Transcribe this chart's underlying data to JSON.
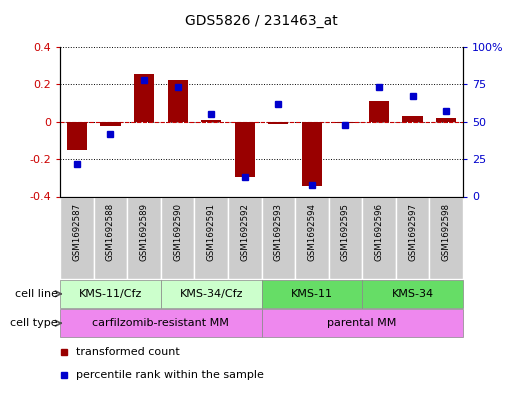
{
  "title": "GDS5826 / 231463_at",
  "samples": [
    "GSM1692587",
    "GSM1692588",
    "GSM1692589",
    "GSM1692590",
    "GSM1692591",
    "GSM1692592",
    "GSM1692593",
    "GSM1692594",
    "GSM1692595",
    "GSM1692596",
    "GSM1692597",
    "GSM1692598"
  ],
  "transformed_count": [
    -0.15,
    -0.02,
    0.255,
    0.225,
    0.01,
    -0.295,
    -0.01,
    -0.345,
    -0.005,
    0.11,
    0.03,
    0.02
  ],
  "percentile_rank": [
    22,
    42,
    78,
    73,
    55,
    13,
    62,
    8,
    48,
    73,
    67,
    57
  ],
  "bar_color": "#990000",
  "dot_color": "#0000cc",
  "ylim_left": [
    -0.4,
    0.4
  ],
  "ylim_right": [
    0,
    100
  ],
  "yticks_left": [
    -0.4,
    -0.2,
    0,
    0.2,
    0.4
  ],
  "yticks_right": [
    0,
    25,
    50,
    75,
    100
  ],
  "cell_line_groups": [
    {
      "label": "KMS-11/Cfz",
      "start": 0,
      "end": 2,
      "color": "#ccffcc"
    },
    {
      "label": "KMS-34/Cfz",
      "start": 3,
      "end": 5,
      "color": "#ccffcc"
    },
    {
      "label": "KMS-11",
      "start": 6,
      "end": 8,
      "color": "#66dd66"
    },
    {
      "label": "KMS-34",
      "start": 9,
      "end": 11,
      "color": "#66dd66"
    }
  ],
  "cell_type_groups": [
    {
      "label": "carfilzomib-resistant MM",
      "start": 0,
      "end": 5,
      "color": "#ee88ee"
    },
    {
      "label": "parental MM",
      "start": 6,
      "end": 11,
      "color": "#ee88ee"
    }
  ],
  "legend_items": [
    {
      "label": "transformed count",
      "color": "#990000"
    },
    {
      "label": "percentile rank within the sample",
      "color": "#0000cc"
    }
  ],
  "background_color": "#ffffff",
  "sample_box_color": "#cccccc",
  "zero_line_color": "#cc0000"
}
